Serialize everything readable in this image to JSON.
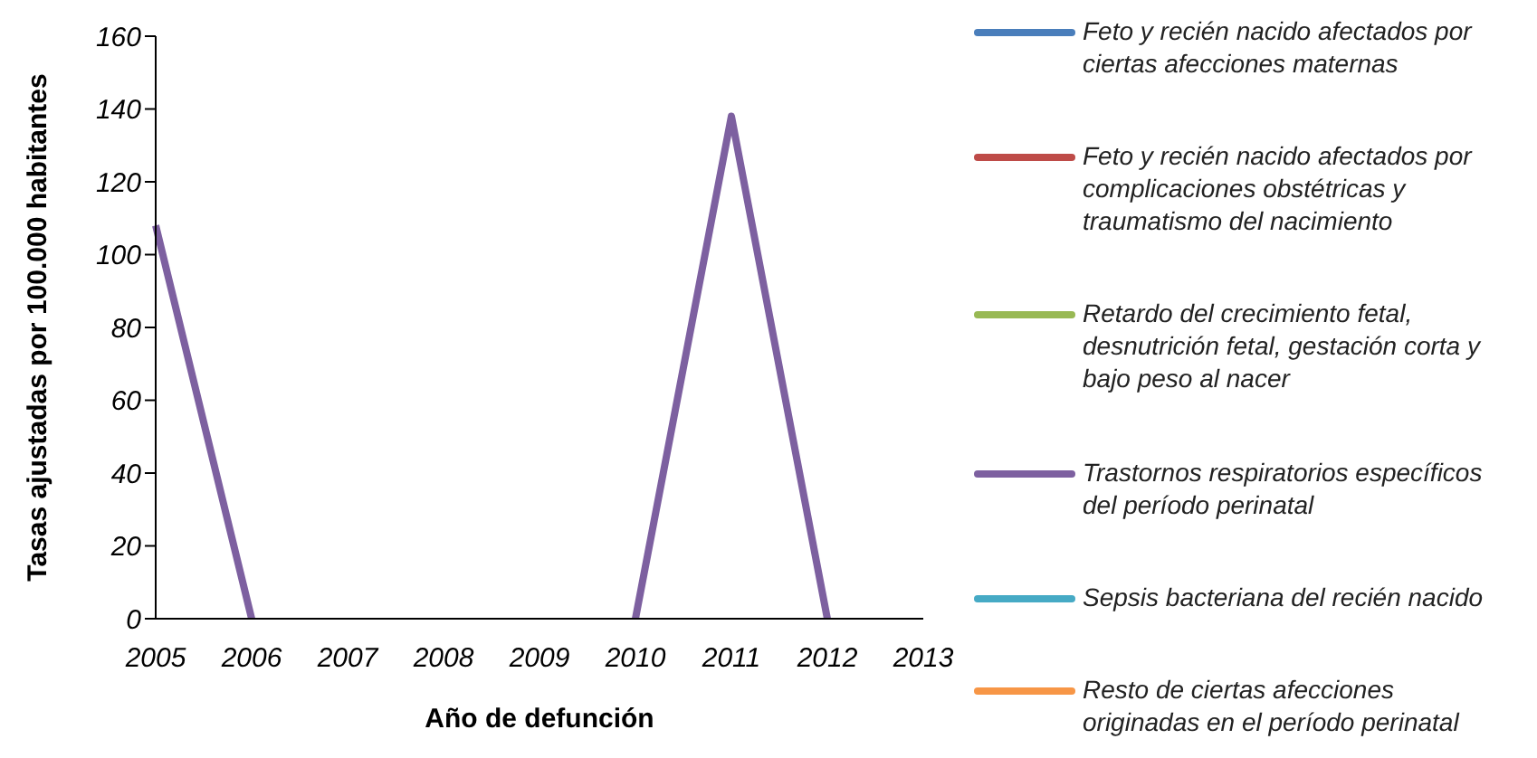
{
  "chart_data": {
    "type": "line",
    "xlabel": "Año de defunción",
    "ylabel": "Tasas ajustadas por 100.000 habitantes",
    "categories": [
      "2005",
      "2006",
      "2007",
      "2008",
      "2009",
      "2010",
      "2011",
      "2012",
      "2013"
    ],
    "ylim": [
      0,
      160
    ],
    "yticks": [
      0,
      20,
      40,
      60,
      80,
      100,
      120,
      140,
      160
    ],
    "grid": false,
    "legend": "right",
    "marker": "none",
    "series": [
      {
        "name": "Feto y recién nacido afectados por ciertas afecciones maternas",
        "color": "#4a7ebb",
        "values": [
          null,
          null,
          null,
          null,
          null,
          null,
          null,
          null,
          null
        ]
      },
      {
        "name": "Feto y recién nacido afectados por complicaciones obstétricas y traumatismo del nacimiento",
        "color": "#be4b48",
        "values": [
          null,
          null,
          null,
          null,
          null,
          null,
          null,
          null,
          null
        ]
      },
      {
        "name": "Retardo del crecimiento fetal, desnutrición fetal, gestación corta y bajo peso al nacer",
        "color": "#98b954",
        "values": [
          null,
          null,
          null,
          null,
          null,
          null,
          null,
          null,
          null
        ]
      },
      {
        "name": "Trastornos respiratorios específicos del período perinatal",
        "color": "#7d60a0",
        "values": [
          108,
          0,
          null,
          null,
          null,
          0,
          138,
          0,
          null
        ]
      },
      {
        "name": "Sepsis bacteriana del recién nacido",
        "color": "#46aac5",
        "values": [
          null,
          null,
          null,
          null,
          null,
          null,
          null,
          null,
          null
        ]
      },
      {
        "name": "Resto de ciertas afecciones originadas en el período perinatal",
        "color": "#f79646",
        "values": [
          null,
          null,
          null,
          null,
          null,
          null,
          null,
          null,
          null
        ]
      }
    ]
  }
}
